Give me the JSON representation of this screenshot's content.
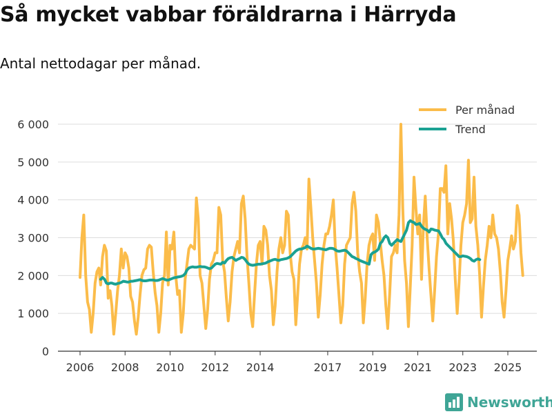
{
  "brand": {
    "name": "Newsworthy",
    "color": "#3fa596"
  },
  "chart_data": {
    "type": "line",
    "title": "Så mycket vabbar föräldrarna i Härryda",
    "subtitle": "Antal nettodagar per månad.",
    "xlabel": "",
    "ylabel": "",
    "ylim": [
      0,
      6000
    ],
    "xlim": [
      2005.3,
      2025.9
    ],
    "yticks": [
      0,
      1000,
      2000,
      3000,
      4000,
      5000,
      6000
    ],
    "ytick_labels": [
      "0",
      "1 000",
      "2 000",
      "3 000",
      "4 000",
      "5 000",
      "6 000"
    ],
    "xticks": [
      2006,
      2008,
      2010,
      2012,
      2014,
      2017,
      2019,
      2021,
      2023,
      2025
    ],
    "xtick_labels": [
      "2006",
      "2008",
      "2010",
      "2012",
      "2014",
      "2017",
      "2019",
      "2021",
      "2023",
      "2025"
    ],
    "grid": true,
    "legend_position": "top-right",
    "series": [
      {
        "name": "Per månad",
        "color": "#fbbc4a",
        "start": 2006.0,
        "step": 0.08333,
        "values": [
          1950,
          3000,
          3600,
          2000,
          1300,
          1100,
          500,
          1000,
          1800,
          2100,
          2200,
          1750,
          2500,
          2800,
          2650,
          1400,
          1600,
          1200,
          450,
          1000,
          1600,
          2000,
          2700,
          2200,
          2600,
          2500,
          2200,
          1450,
          1300,
          800,
          450,
          900,
          1500,
          2000,
          2150,
          2200,
          2700,
          2800,
          2750,
          2100,
          1550,
          1200,
          500,
          1000,
          1800,
          2000,
          3150,
          1750,
          2800,
          2700,
          3150,
          2000,
          1500,
          1600,
          500,
          1000,
          1900,
          2300,
          2700,
          2800,
          2750,
          2700,
          4050,
          3500,
          2000,
          1800,
          1200,
          600,
          1100,
          1900,
          2300,
          2400,
          2600,
          2600,
          3800,
          3600,
          2400,
          2100,
          1400,
          800,
          1300,
          2100,
          2500,
          2700,
          2900,
          2600,
          3900,
          4100,
          3500,
          2500,
          1800,
          1000,
          650,
          1500,
          2300,
          2800,
          2900,
          2300,
          3300,
          3200,
          2800,
          2000,
          1600,
          700,
          1200,
          2100,
          2700,
          3000,
          2600,
          2800,
          3700,
          3600,
          2600,
          2100,
          1900,
          700,
          1500,
          2300,
          2700,
          2800,
          3000,
          2700,
          4550,
          3800,
          3000,
          2400,
          1800,
          900,
          1500,
          2300,
          2800,
          3100,
          3100,
          3300,
          3600,
          4000,
          2800,
          2200,
          1500,
          750,
          1200,
          2300,
          2800,
          2900,
          3000,
          3900,
          4200,
          3700,
          2600,
          2100,
          1800,
          750,
          1400,
          2300,
          2800,
          3000,
          3100,
          2400,
          3600,
          3400,
          2900,
          2400,
          2000,
          1200,
          600,
          1500,
          2500,
          2600,
          2800,
          2600,
          3600,
          6000,
          3800,
          2400,
          1800,
          650,
          1700,
          2800,
          4600,
          3800,
          3100,
          3600,
          1900,
          3300,
          4100,
          3000,
          2200,
          1500,
          800,
          1600,
          2500,
          3100,
          4300,
          4300,
          4200,
          4900,
          3100,
          3900,
          3500,
          2900,
          1900,
          1000,
          1800,
          2800,
          3400,
          3600,
          3900,
          5050,
          3400,
          3500,
          4600,
          3300,
          2800,
          2000,
          900,
          1700,
          2400,
          2800,
          3300,
          3000,
          3600,
          3100,
          3000,
          2700,
          2100,
          1300,
          900,
          1600,
          2400,
          2700,
          3050,
          2700,
          2900,
          3850,
          3600,
          2600,
          2000
        ]
      },
      {
        "name": "Trend",
        "color": "#1aa192",
        "start": 2006.92,
        "step": 0.08333,
        "values": [
          1900,
          1950,
          1900,
          1800,
          1780,
          1800,
          1800,
          1780,
          1770,
          1790,
          1800,
          1820,
          1850,
          1840,
          1830,
          1830,
          1850,
          1850,
          1860,
          1870,
          1880,
          1890,
          1870,
          1860,
          1860,
          1870,
          1880,
          1880,
          1880,
          1870,
          1870,
          1880,
          1900,
          1920,
          1900,
          1880,
          1880,
          1900,
          1920,
          1940,
          1950,
          1960,
          1970,
          1980,
          2000,
          2050,
          2150,
          2200,
          2220,
          2230,
          2220,
          2220,
          2230,
          2240,
          2230,
          2230,
          2220,
          2200,
          2180,
          2200,
          2250,
          2300,
          2320,
          2310,
          2300,
          2350,
          2330,
          2400,
          2450,
          2470,
          2480,
          2440,
          2400,
          2430,
          2450,
          2480,
          2470,
          2420,
          2350,
          2300,
          2280,
          2270,
          2280,
          2290,
          2300,
          2300,
          2310,
          2320,
          2330,
          2360,
          2380,
          2400,
          2420,
          2430,
          2410,
          2400,
          2420,
          2430,
          2440,
          2450,
          2470,
          2500,
          2550,
          2600,
          2650,
          2680,
          2700,
          2700,
          2720,
          2740,
          2780,
          2750,
          2720,
          2700,
          2700,
          2710,
          2720,
          2710,
          2700,
          2690,
          2680,
          2700,
          2720,
          2720,
          2710,
          2680,
          2650,
          2640,
          2650,
          2660,
          2670,
          2650,
          2600,
          2550,
          2500,
          2480,
          2450,
          2430,
          2400,
          2380,
          2360,
          2340,
          2320,
          2300,
          2550,
          2600,
          2620,
          2650,
          2700,
          2850,
          2900,
          3000,
          3050,
          3000,
          2850,
          2800,
          2850,
          2900,
          2950,
          2920,
          2900,
          3000,
          3100,
          3200,
          3400,
          3450,
          3420,
          3400,
          3350,
          3360,
          3380,
          3300,
          3250,
          3220,
          3200,
          3150,
          3230,
          3220,
          3200,
          3190,
          3180,
          3100,
          3000,
          2950,
          2850,
          2800,
          2750,
          2700,
          2650,
          2600,
          2550,
          2500,
          2500,
          2520,
          2510,
          2500,
          2480,
          2450,
          2400,
          2380,
          2420,
          2440,
          2420
        ]
      }
    ]
  }
}
